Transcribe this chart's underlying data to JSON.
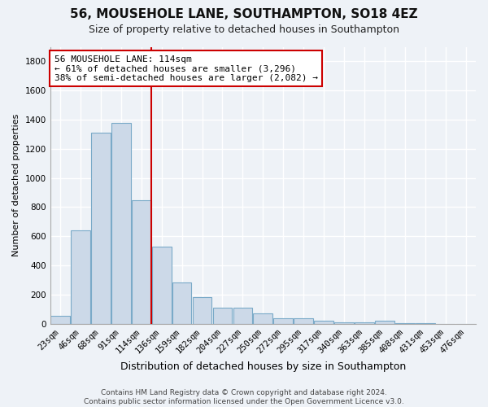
{
  "title": "56, MOUSEHOLE LANE, SOUTHAMPTON, SO18 4EZ",
  "subtitle": "Size of property relative to detached houses in Southampton",
  "xlabel": "Distribution of detached houses by size in Southampton",
  "ylabel": "Number of detached properties",
  "categories": [
    "23sqm",
    "46sqm",
    "68sqm",
    "91sqm",
    "114sqm",
    "136sqm",
    "159sqm",
    "182sqm",
    "204sqm",
    "227sqm",
    "250sqm",
    "272sqm",
    "295sqm",
    "317sqm",
    "340sqm",
    "363sqm",
    "385sqm",
    "408sqm",
    "431sqm",
    "453sqm",
    "476sqm"
  ],
  "values": [
    55,
    640,
    1310,
    1380,
    845,
    530,
    285,
    185,
    110,
    110,
    70,
    35,
    35,
    22,
    10,
    10,
    20,
    3,
    2,
    1,
    0
  ],
  "bar_color": "#ccd9e8",
  "bar_edge_color": "#7aaac8",
  "red_line_x": 4.5,
  "ylim": [
    0,
    1900
  ],
  "yticks": [
    0,
    200,
    400,
    600,
    800,
    1000,
    1200,
    1400,
    1600,
    1800
  ],
  "annotation_line1": "56 MOUSEHOLE LANE: 114sqm",
  "annotation_line2": "← 61% of detached houses are smaller (3,296)",
  "annotation_line3": "38% of semi-detached houses are larger (2,082) →",
  "annotation_box_color": "#ffffff",
  "annotation_box_edge": "#cc0000",
  "footer_text": "Contains HM Land Registry data © Crown copyright and database right 2024.\nContains public sector information licensed under the Open Government Licence v3.0.",
  "background_color": "#eef2f7",
  "grid_color": "#ffffff",
  "title_fontsize": 11,
  "subtitle_fontsize": 9,
  "ylabel_fontsize": 8,
  "xlabel_fontsize": 9,
  "tick_fontsize": 7.5,
  "annotation_fontsize": 8,
  "footer_fontsize": 6.5
}
